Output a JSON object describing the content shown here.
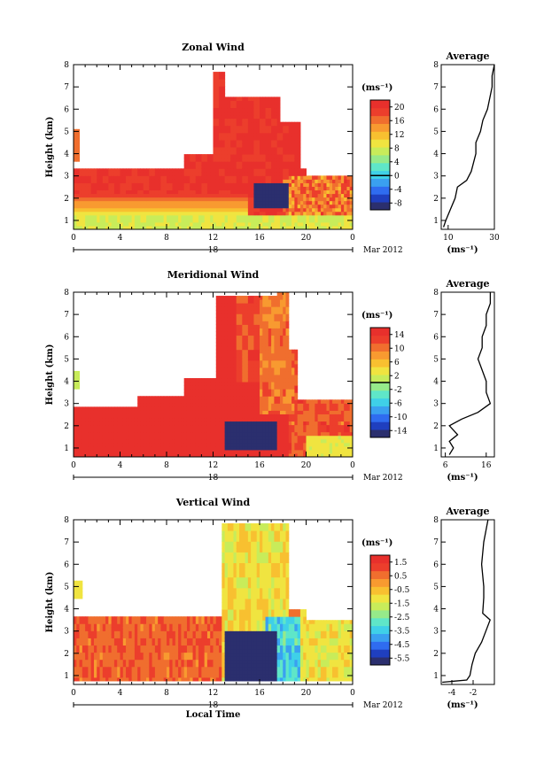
{
  "chart_data": [
    {
      "type": "heatmap",
      "title": "Zonal Wind",
      "ylabel": "Height (km)",
      "xlabel": "",
      "x_ticks": [
        "0",
        "4",
        "8",
        "12",
        "16",
        "20",
        "0"
      ],
      "y_ticks": [
        "1",
        "2",
        "3",
        "4",
        "5",
        "6",
        "7",
        "8"
      ],
      "xlim": [
        0,
        24
      ],
      "ylim": [
        0.6,
        8.0
      ],
      "date_label": "18",
      "date_suffix": "Mar 2012",
      "colorbar": {
        "unit": "(ms⁻¹)",
        "ticks": [
          "20",
          "16",
          "12",
          "8",
          "4",
          "0",
          "-4",
          "-8"
        ],
        "min": -10,
        "max": 22,
        "zero_line": 0
      },
      "profile": {
        "title": "Average",
        "x_ticks": [
          "10",
          "30"
        ],
        "xlim": [
          7,
          30
        ],
        "xlabel": "(ms⁻¹)",
        "heights": [
          0.7,
          1.0,
          1.5,
          2.0,
          2.5,
          2.8,
          3.2,
          3.6,
          4.0,
          4.5,
          5.0,
          5.5,
          6.0,
          6.5,
          7.0,
          7.5,
          8.0
        ],
        "values": [
          8,
          9,
          11,
          13,
          14,
          18,
          20,
          21,
          22,
          22,
          24,
          25,
          27,
          28,
          29,
          29,
          30
        ]
      }
    },
    {
      "type": "heatmap",
      "title": "Meridional Wind",
      "ylabel": "Height (km)",
      "xlabel": "",
      "x_ticks": [
        "0",
        "4",
        "8",
        "12",
        "16",
        "20",
        "0"
      ],
      "y_ticks": [
        "1",
        "2",
        "3",
        "4",
        "5",
        "6",
        "7",
        "8"
      ],
      "xlim": [
        0,
        24
      ],
      "ylim": [
        0.6,
        8.0
      ],
      "date_label": "18",
      "date_suffix": "Mar 2012",
      "colorbar": {
        "unit": "(ms⁻¹)",
        "ticks": [
          "14",
          "10",
          "6",
          "2",
          "-2",
          "-6",
          "-10",
          "-14"
        ],
        "min": -16,
        "max": 16,
        "zero_line": 0
      },
      "profile": {
        "title": "Average",
        "x_ticks": [
          "6",
          "16"
        ],
        "xlim": [
          5,
          18
        ],
        "xlabel": "(ms⁻¹)",
        "heights": [
          0.7,
          1.0,
          1.3,
          1.6,
          2.0,
          2.3,
          2.6,
          3.0,
          3.5,
          4.0,
          4.5,
          5.0,
          5.5,
          6.0,
          6.5,
          7.0,
          7.5,
          8.0
        ],
        "values": [
          7,
          8,
          7,
          9,
          7,
          10,
          14,
          17,
          16,
          16,
          15,
          14,
          15,
          15,
          16,
          16,
          17,
          17
        ]
      }
    },
    {
      "type": "heatmap",
      "title": "Vertical Wind",
      "ylabel": "Height (km)",
      "xlabel": "Local Time",
      "x_ticks": [
        "0",
        "4",
        "8",
        "12",
        "16",
        "20",
        "0"
      ],
      "y_ticks": [
        "1",
        "2",
        "3",
        "4",
        "5",
        "6",
        "7",
        "8"
      ],
      "xlim": [
        0,
        24
      ],
      "ylim": [
        0.6,
        8.0
      ],
      "date_label": "18",
      "date_suffix": "Mar 2012",
      "colorbar": {
        "unit": "(ms⁻¹)",
        "ticks": [
          "1.5",
          "0.5",
          "-0.5",
          "-1.5",
          "-2.5",
          "-3.5",
          "-4.5",
          "-5.5"
        ],
        "min": -6,
        "max": 2,
        "zero_line": null
      },
      "profile": {
        "title": "Average",
        "x_ticks": [
          "-4",
          "-2"
        ],
        "xlim": [
          -5,
          0
        ],
        "xlabel": "(ms⁻¹)",
        "heights": [
          0.7,
          0.8,
          1.0,
          1.5,
          2.0,
          2.5,
          3.0,
          3.5,
          3.8,
          4.5,
          5.0,
          5.5,
          6.0,
          6.5,
          7.0,
          7.5,
          8.0
        ],
        "values": [
          -4.9,
          -2.6,
          -2.3,
          -2.1,
          -1.8,
          -1.2,
          -0.8,
          -0.4,
          -1.1,
          -1.0,
          -1.0,
          -1.1,
          -1.2,
          -1.1,
          -1.0,
          -0.8,
          -0.6
        ]
      }
    }
  ]
}
